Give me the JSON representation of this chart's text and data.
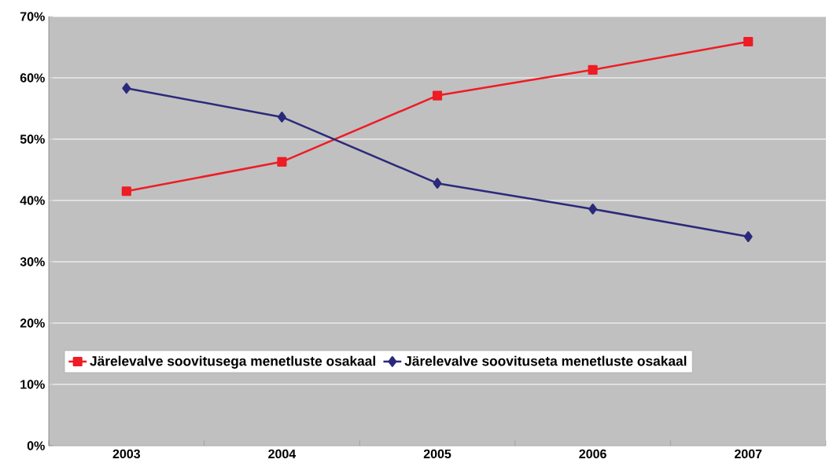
{
  "chart_data": {
    "type": "line",
    "categories": [
      "2003",
      "2004",
      "2005",
      "2006",
      "2007"
    ],
    "series": [
      {
        "name": "Järelevalve soovitusega menetluste osakaal",
        "color": "#ee1c25",
        "marker": "square",
        "values": [
          41.5,
          46.3,
          57.1,
          61.3,
          65.9
        ]
      },
      {
        "name": "Järelevalve soovituseta menetluste osakaal",
        "color": "#2b2a7a",
        "marker": "diamond",
        "values": [
          58.3,
          53.6,
          42.8,
          38.6,
          34.1
        ]
      }
    ],
    "ylim": [
      0,
      70
    ],
    "yticks": [
      {
        "value": 0,
        "label": "0%"
      },
      {
        "value": 10,
        "label": "10%"
      },
      {
        "value": 20,
        "label": "20%"
      },
      {
        "value": 30,
        "label": "30%"
      },
      {
        "value": 40,
        "label": "40%"
      },
      {
        "value": 50,
        "label": "50%"
      },
      {
        "value": 60,
        "label": "60%"
      },
      {
        "value": 70,
        "label": "70%"
      }
    ],
    "grid": "y",
    "legend": "bottom left",
    "line_style": "solid"
  }
}
